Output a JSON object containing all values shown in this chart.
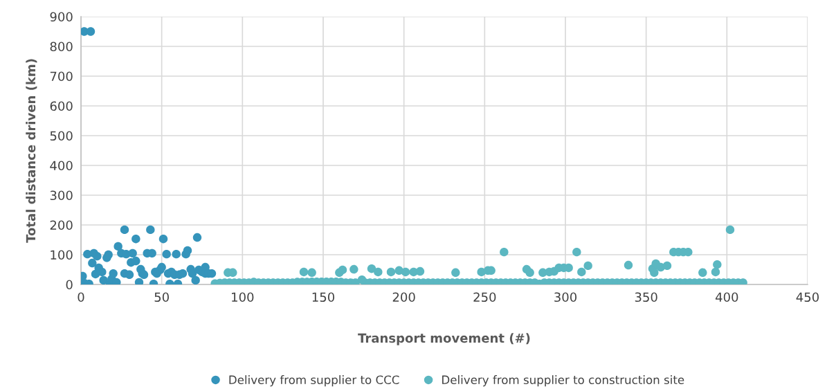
{
  "chart_data": {
    "type": "scatter",
    "xlabel": "Transport movement (#)",
    "ylabel": "Total distance driven (km)",
    "xlim": [
      0,
      450
    ],
    "xticks": [
      0,
      50,
      100,
      150,
      200,
      250,
      300,
      350,
      400,
      450
    ],
    "ylim": [
      0,
      900
    ],
    "yticks": [
      0,
      100,
      200,
      300,
      400,
      500,
      600,
      700,
      800,
      900
    ],
    "grid": true,
    "legend": "bottom",
    "marker": "circle",
    "series": [
      {
        "name": "Delivery from supplier to CCC",
        "color": "#3594bb",
        "x": [
          2,
          6,
          1,
          2,
          4,
          5,
          7,
          8,
          9,
          10,
          11,
          13,
          14,
          16,
          17,
          18,
          19,
          20,
          22,
          23,
          25,
          27,
          27,
          28,
          30,
          31,
          32,
          34,
          34,
          36,
          37,
          38,
          39,
          41,
          43,
          44,
          45,
          46,
          47,
          49,
          50,
          51,
          53,
          54,
          55,
          56,
          58,
          59,
          60,
          61,
          63,
          65,
          66,
          68,
          69,
          71,
          72,
          73,
          75,
          77,
          77,
          79,
          81
        ],
        "values": [
          850,
          850,
          28,
          5,
          102,
          2,
          72,
          105,
          35,
          95,
          56,
          42,
          14,
          90,
          100,
          2,
          18,
          37,
          7,
          128,
          105,
          184,
          37,
          102,
          33,
          74,
          105,
          153,
          79,
          7,
          51,
          37,
          33,
          105,
          184,
          105,
          2,
          42,
          37,
          49,
          58,
          153,
          102,
          37,
          2,
          42,
          33,
          102,
          2,
          33,
          37,
          102,
          114,
          51,
          37,
          14,
          158,
          49,
          42,
          37,
          58,
          37,
          37
        ]
      },
      {
        "name": "Delivery from supplier to construction site",
        "color": "#5bb7c1",
        "x": [
          83,
          86,
          89,
          92,
          95,
          98,
          101,
          104,
          107,
          110,
          113,
          116,
          119,
          122,
          125,
          128,
          131,
          134,
          137,
          140,
          143,
          146,
          149,
          152,
          155,
          158,
          161,
          164,
          167,
          170,
          176,
          179,
          182,
          185,
          188,
          191,
          194,
          197,
          200,
          203,
          206,
          209,
          212,
          215,
          218,
          221,
          224,
          227,
          230,
          233,
          236,
          239,
          242,
          245,
          248,
          251,
          254,
          257,
          260,
          263,
          266,
          269,
          272,
          275,
          278,
          281,
          284,
          287,
          290,
          293,
          296,
          299,
          302,
          305,
          308,
          311,
          314,
          317,
          320,
          323,
          326,
          329,
          332,
          335,
          338,
          341,
          344,
          347,
          350,
          353,
          356,
          359,
          362,
          365,
          368,
          371,
          374,
          377,
          380,
          383,
          386,
          389,
          392,
          395,
          398,
          401,
          404,
          407,
          410,
          91,
          94,
          138,
          143,
          160,
          162,
          169,
          174,
          180,
          184,
          192,
          197,
          201,
          206,
          210,
          232,
          248,
          252,
          254,
          262,
          276,
          278,
          286,
          290,
          293,
          296,
          299,
          302,
          307,
          310,
          314,
          339,
          354,
          355,
          356,
          359,
          363,
          367,
          370,
          373,
          376,
          385,
          393,
          394,
          402
        ],
        "values": [
          3,
          5,
          6,
          6,
          6,
          6,
          6,
          6,
          8,
          6,
          6,
          6,
          6,
          6,
          6,
          6,
          6,
          8,
          8,
          8,
          9,
          9,
          9,
          9,
          9,
          9,
          8,
          6,
          6,
          6,
          6,
          6,
          6,
          6,
          6,
          6,
          6,
          6,
          6,
          6,
          6,
          6,
          6,
          6,
          6,
          6,
          6,
          6,
          6,
          6,
          6,
          6,
          6,
          6,
          6,
          6,
          6,
          6,
          6,
          6,
          6,
          6,
          6,
          6,
          6,
          6,
          2,
          6,
          6,
          6,
          6,
          6,
          6,
          6,
          6,
          6,
          6,
          6,
          6,
          6,
          6,
          6,
          6,
          6,
          6,
          6,
          6,
          6,
          6,
          6,
          6,
          6,
          6,
          6,
          6,
          6,
          6,
          6,
          6,
          6,
          6,
          6,
          6,
          6,
          6,
          6,
          6,
          6,
          6,
          40,
          40,
          42,
          40,
          40,
          49,
          51,
          16,
          53,
          42,
          42,
          47,
          42,
          42,
          44,
          40,
          42,
          47,
          47,
          109,
          51,
          40,
          40,
          42,
          44,
          56,
          56,
          56,
          109,
          42,
          63,
          65,
          53,
          40,
          70,
          58,
          63,
          109,
          109,
          109,
          109,
          40,
          42,
          67,
          184
        ]
      }
    ]
  }
}
